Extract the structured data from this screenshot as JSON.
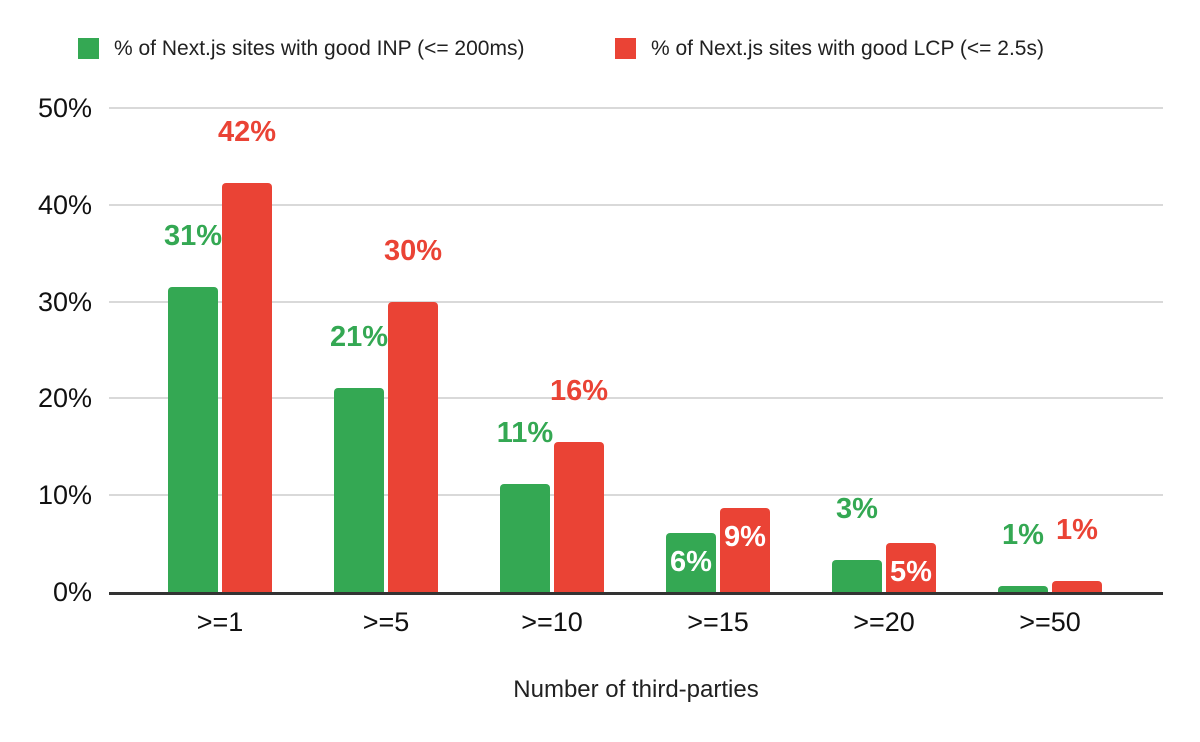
{
  "chart_data": {
    "type": "bar",
    "title": "",
    "xlabel": "Number of third-parties",
    "ylabel": "",
    "ylim": [
      0,
      50
    ],
    "yticks": [
      {
        "value": 0,
        "label": "0%"
      },
      {
        "value": 10,
        "label": "10%"
      },
      {
        "value": 20,
        "label": "20%"
      },
      {
        "value": 30,
        "label": "30%"
      },
      {
        "value": 40,
        "label": "40%"
      },
      {
        "value": 50,
        "label": "50%"
      }
    ],
    "grid": true,
    "legend_position": "top",
    "categories": [
      ">=1",
      ">=5",
      ">=10",
      ">=15",
      ">=20",
      ">=50"
    ],
    "series": [
      {
        "name": "% of Next.js sites with good INP (<= 200ms)",
        "color": "#34A853",
        "values": [
          31,
          21,
          11,
          6,
          3,
          1
        ],
        "values_precise": [
          31.5,
          21.1,
          11.2,
          6.1,
          3.3,
          0.65
        ],
        "data_labels": [
          "31%",
          "21%",
          "11%",
          "6%",
          "3%",
          "1%"
        ],
        "label_placement": [
          "above",
          "above",
          "above",
          "inside",
          "above",
          "above"
        ]
      },
      {
        "name": "% of Next.js sites with good LCP (<= 2.5s)",
        "color": "#EA4335",
        "values": [
          42,
          30,
          16,
          9,
          5,
          1
        ],
        "values_precise": [
          42.3,
          30.0,
          15.5,
          8.7,
          5.1,
          1.1
        ],
        "data_labels": [
          "42%",
          "30%",
          "16%",
          "9%",
          "5%",
          "1%"
        ],
        "label_placement": [
          "above",
          "above",
          "above",
          "inside",
          "inside",
          "above"
        ]
      }
    ]
  },
  "colors": {
    "inp_green": "#34A853",
    "lcp_red": "#EA4335",
    "gridline": "#d9d9d9",
    "axis_baseline": "#333333",
    "tick_text": "#111111",
    "inside_label_text": "#ffffff",
    "background": "#ffffff"
  }
}
